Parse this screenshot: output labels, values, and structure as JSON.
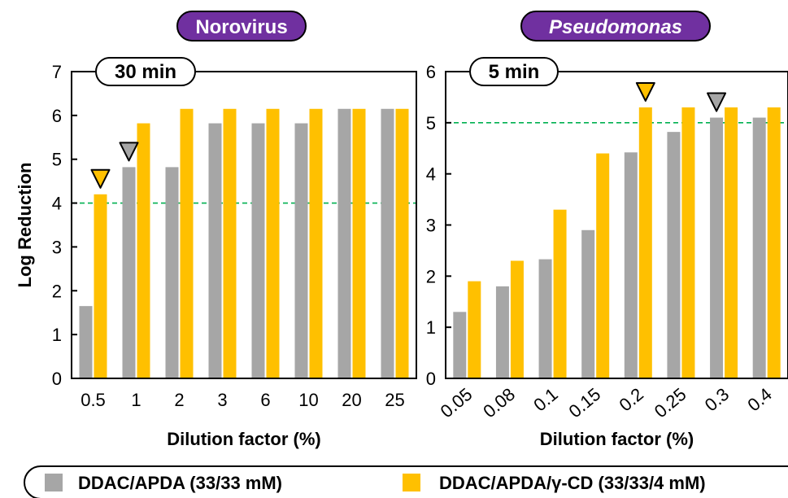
{
  "colors": {
    "series_a": "#a6a6a6",
    "series_b": "#ffc000",
    "threshold": "#00b050",
    "pill_fill": "#7030a0",
    "frame": "#000000"
  },
  "chart_data": [
    {
      "type": "bar",
      "panel_title": "Norovirus",
      "panel_title_italic": false,
      "time_label": "30 min",
      "xlabel": "Dilution factor (%)",
      "ylabel": "Log Reduction",
      "ylim": [
        0,
        7
      ],
      "yticks": [
        "0",
        "1",
        "2",
        "3",
        "4",
        "5",
        "6",
        "7"
      ],
      "ytick_values": [
        0,
        1,
        2,
        3,
        4,
        5,
        6,
        7
      ],
      "categories": [
        "0.5",
        "1",
        "2",
        "3",
        "6",
        "10",
        "20",
        "25"
      ],
      "series": [
        {
          "name": "DDAC/APDA (33/33 mM)",
          "values": [
            1.65,
            4.82,
            4.82,
            5.82,
            5.82,
            5.82,
            6.15,
            6.15
          ]
        },
        {
          "name": "DDAC/APDA/γ-CD (33/33/4 mM)",
          "values": [
            4.2,
            5.82,
            6.15,
            6.15,
            6.15,
            6.15,
            6.15,
            6.15
          ]
        }
      ],
      "threshold": 4,
      "markers": [
        {
          "series": 0,
          "category": "1"
        },
        {
          "series": 1,
          "category": "0.5"
        }
      ],
      "rotated_ticks": false
    },
    {
      "type": "bar",
      "panel_title": "Pseudomonas",
      "panel_title_italic": true,
      "time_label": "5 min",
      "xlabel": "Dilution factor (%)",
      "ylabel": "",
      "ylim": [
        0,
        6
      ],
      "yticks": [
        "0",
        "1",
        "2",
        "3",
        "4",
        "5",
        "6"
      ],
      "ytick_values": [
        0,
        1,
        2,
        3,
        4,
        5,
        6
      ],
      "categories": [
        "0.05",
        "0.08",
        "0.1",
        "0.15",
        "0.2",
        "0.25",
        "0.3",
        "0.4"
      ],
      "series": [
        {
          "name": "DDAC/APDA (33/33 mM)",
          "values": [
            1.3,
            1.8,
            2.33,
            2.9,
            4.42,
            4.82,
            5.1,
            5.1
          ]
        },
        {
          "name": "DDAC/APDA/γ-CD (33/33/4 mM)",
          "values": [
            1.9,
            2.3,
            3.3,
            4.4,
            5.3,
            5.3,
            5.3,
            5.3
          ]
        }
      ],
      "threshold": 5,
      "markers": [
        {
          "series": 0,
          "category": "0.3"
        },
        {
          "series": 1,
          "category": "0.2"
        }
      ],
      "rotated_ticks": true
    }
  ],
  "legend": {
    "placement": "bottom",
    "items": [
      {
        "label": "DDAC/APDA (33/33 mM)"
      },
      {
        "label": "DDAC/APDA/γ-CD (33/33/4 mM)"
      }
    ]
  }
}
